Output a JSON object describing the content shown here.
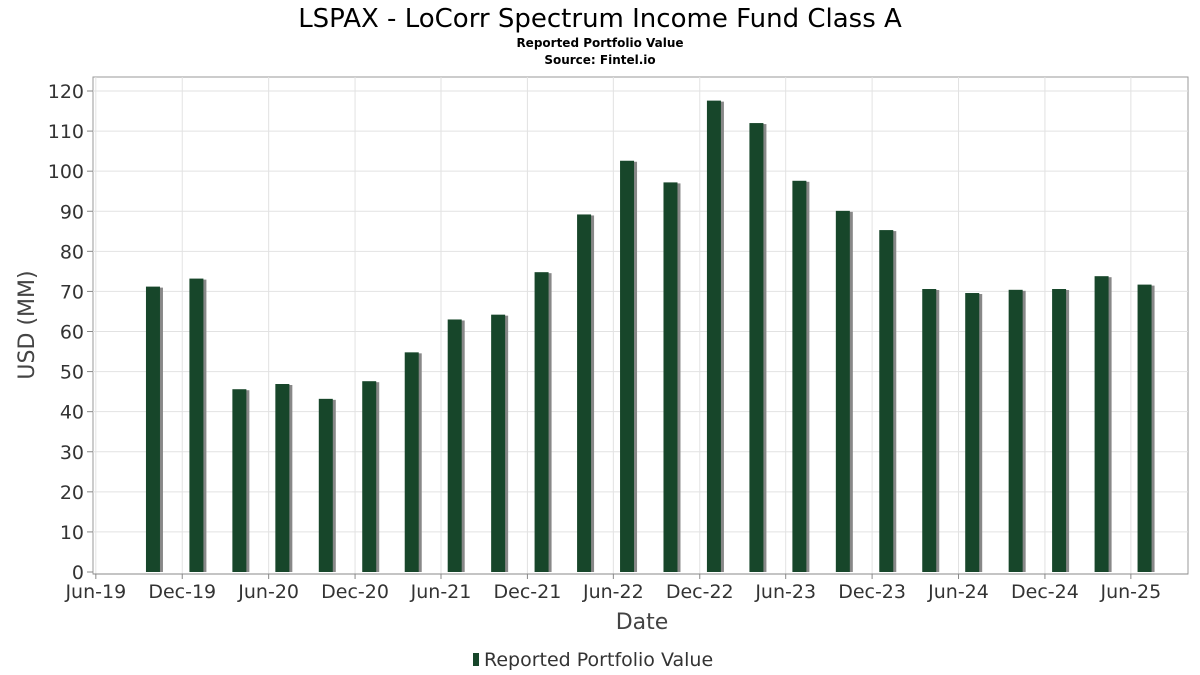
{
  "chart_data": {
    "type": "bar",
    "title": "LSPAX - LoCorr Spectrum Income Fund Class A",
    "subtitles": [
      "Reported Portfolio Value",
      "Source: Fintel.io"
    ],
    "xlabel": "Date",
    "ylabel": "USD (MM)",
    "ylim": [
      0,
      123
    ],
    "yticks": [
      0,
      10,
      20,
      30,
      40,
      50,
      60,
      70,
      80,
      90,
      100,
      110,
      120
    ],
    "xlim": [
      "2019-05-26",
      "2025-09-30"
    ],
    "xticks": [
      {
        "label": "Jun-19",
        "date": "2019-06-01"
      },
      {
        "label": "Dec-19",
        "date": "2019-12-01"
      },
      {
        "label": "Jun-20",
        "date": "2020-06-01"
      },
      {
        "label": "Dec-20",
        "date": "2020-12-01"
      },
      {
        "label": "Jun-21",
        "date": "2021-06-01"
      },
      {
        "label": "Dec-21",
        "date": "2021-12-01"
      },
      {
        "label": "Jun-22",
        "date": "2022-06-01"
      },
      {
        "label": "Dec-22",
        "date": "2022-12-01"
      },
      {
        "label": "Jun-23",
        "date": "2023-06-01"
      },
      {
        "label": "Dec-23",
        "date": "2023-12-01"
      },
      {
        "label": "Jun-24",
        "date": "2024-06-01"
      },
      {
        "label": "Dec-24",
        "date": "2024-12-01"
      },
      {
        "label": "Jun-25",
        "date": "2025-06-01"
      }
    ],
    "grid": true,
    "legend_position": "bottom",
    "series": [
      {
        "name": "Reported Portfolio Value",
        "color": "#17462a",
        "shadow_color": "#888888",
        "points": [
          {
            "date": "2019-09-30",
            "value": 71.2
          },
          {
            "date": "2019-12-31",
            "value": 73.2
          },
          {
            "date": "2020-03-31",
            "value": 45.6
          },
          {
            "date": "2020-06-30",
            "value": 46.9
          },
          {
            "date": "2020-09-30",
            "value": 43.2
          },
          {
            "date": "2020-12-31",
            "value": 47.6
          },
          {
            "date": "2021-03-31",
            "value": 54.8
          },
          {
            "date": "2021-06-30",
            "value": 63.0
          },
          {
            "date": "2021-09-30",
            "value": 64.2
          },
          {
            "date": "2021-12-31",
            "value": 74.8
          },
          {
            "date": "2022-03-31",
            "value": 89.2
          },
          {
            "date": "2022-06-30",
            "value": 102.6
          },
          {
            "date": "2022-09-30",
            "value": 97.2
          },
          {
            "date": "2022-12-31",
            "value": 117.6
          },
          {
            "date": "2023-03-31",
            "value": 112.0
          },
          {
            "date": "2023-06-30",
            "value": 97.6
          },
          {
            "date": "2023-09-30",
            "value": 90.1
          },
          {
            "date": "2023-12-31",
            "value": 85.3
          },
          {
            "date": "2024-03-31",
            "value": 70.6
          },
          {
            "date": "2024-06-30",
            "value": 69.6
          },
          {
            "date": "2024-09-30",
            "value": 70.4
          },
          {
            "date": "2024-12-31",
            "value": 70.6
          },
          {
            "date": "2025-03-31",
            "value": 73.8
          },
          {
            "date": "2025-06-30",
            "value": 71.7
          }
        ]
      }
    ]
  }
}
